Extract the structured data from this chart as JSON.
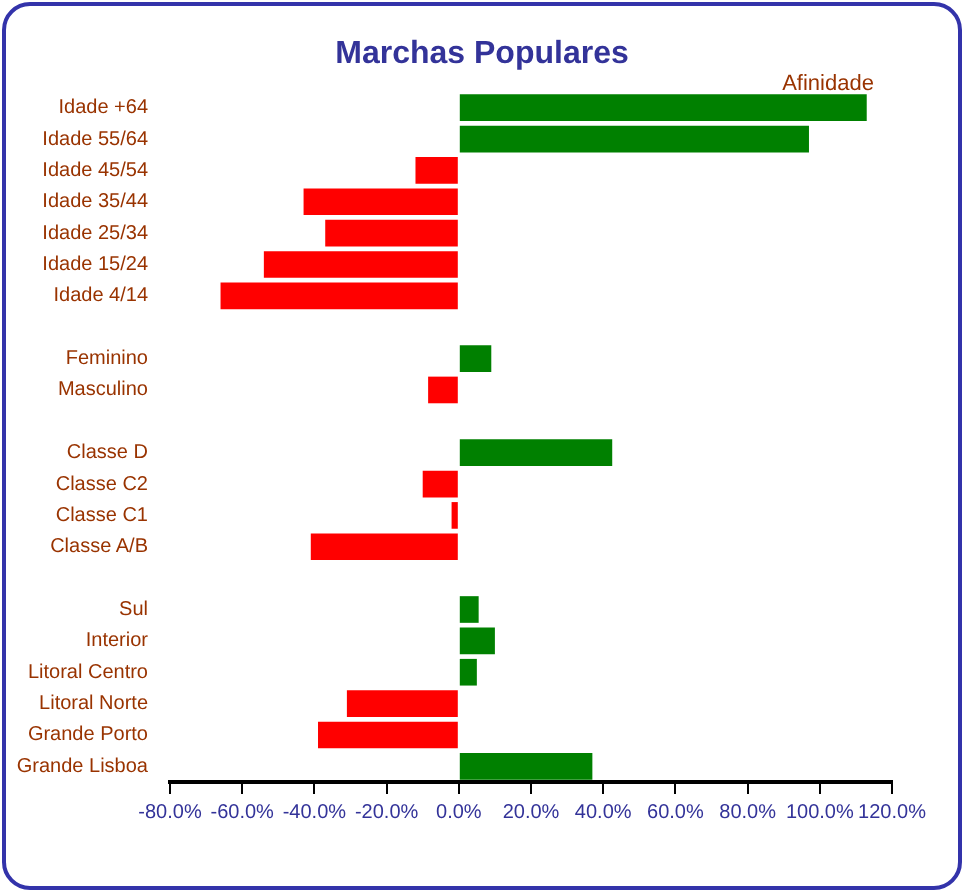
{
  "chart_data": {
    "type": "bar",
    "orientation": "horizontal",
    "title": "Marchas Populares",
    "annotations": [
      "Afinidade"
    ],
    "categories": [
      "Idade +64",
      "Idade 55/64",
      "Idade 45/54",
      "Idade 35/44",
      "Idade 25/34",
      "Idade 15/24",
      "Idade 4/14",
      null,
      "Feminino",
      "Masculino",
      null,
      "Classe D",
      "Classe C2",
      "Classe C1",
      "Classe A/B",
      null,
      "Sul",
      "Interior",
      "Litoral Centro",
      "Litoral Norte",
      "Grande Porto",
      "Grande Lisboa"
    ],
    "values": [
      113,
      97,
      -12,
      -43,
      -37,
      -54,
      -66,
      null,
      9,
      -8.5,
      null,
      42.5,
      -10,
      -2,
      -41,
      null,
      5.5,
      10,
      5,
      -31,
      -39,
      37
    ],
    "colors": [
      "#008000",
      "#008000",
      "#ff0000",
      "#ff0000",
      "#ff0000",
      "#ff0000",
      "#ff0000",
      null,
      "#008000",
      "#ff0000",
      null,
      "#008000",
      "#ff0000",
      "#ff0000",
      "#ff0000",
      null,
      "#008000",
      "#008000",
      "#008000",
      "#ff0000",
      "#ff0000",
      "#008000"
    ],
    "xlim": [
      -80,
      120
    ],
    "xticks": [
      {
        "value": -80,
        "label": "-80.0%"
      },
      {
        "value": -60,
        "label": "-60.0%"
      },
      {
        "value": -40,
        "label": "-40.0%"
      },
      {
        "value": -20,
        "label": "-20.0%"
      },
      {
        "value": 0,
        "label": "0.0%"
      },
      {
        "value": 20,
        "label": "20.0%"
      },
      {
        "value": 40,
        "label": "40.0%"
      },
      {
        "value": 60,
        "label": "60.0%"
      },
      {
        "value": 80,
        "label": "80.0%"
      },
      {
        "value": 100,
        "label": "100.0%"
      },
      {
        "value": 120,
        "label": "120.0%"
      }
    ],
    "grid": false,
    "legend": false
  }
}
